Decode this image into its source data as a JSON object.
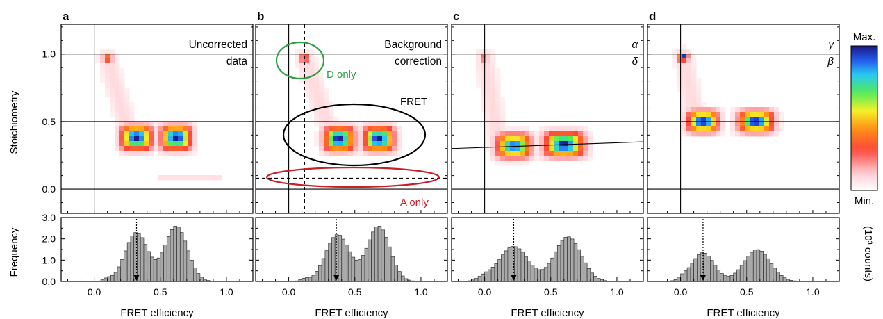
{
  "colors": {
    "d_only_circle": "#2e9e45",
    "a_only_ellipse": "#c8202a",
    "fret_ellipse": "#000000",
    "bar_fill": "#a9a9a9",
    "axis": "#000000"
  },
  "colorbar": {
    "max_label": "Max.",
    "min_label": "Min.",
    "side_label": "(10³ counts)"
  },
  "chart_data": [
    {
      "type": "heatmap",
      "panel": "a",
      "annotation": [
        "Uncorrected",
        "data"
      ],
      "xlim": [
        -0.25,
        1.2
      ],
      "ylim": [
        -0.18,
        1.22
      ],
      "ylabel": "Stoichiometry",
      "yticks": [
        "0.0",
        "0.5",
        "1.0"
      ],
      "ref_lines": {
        "x": [
          0.0
        ],
        "y": [
          0.0,
          0.5,
          1.0
        ]
      },
      "clusters": [
        {
          "E": 0.1,
          "S": 0.97,
          "sE": 0.025,
          "sS": 0.025,
          "peak": 0.45
        },
        {
          "E": 0.32,
          "S": 0.38,
          "sE": 0.07,
          "sS": 0.055,
          "peak": 1.0
        },
        {
          "E": 0.62,
          "S": 0.38,
          "sE": 0.07,
          "sS": 0.055,
          "peak": 1.0
        }
      ],
      "tail": {
        "from": [
          0.1,
          0.97
        ],
        "to": [
          0.25,
          0.45
        ]
      },
      "extra_segments": [
        {
          "E0": 0.5,
          "E1": 0.95,
          "S": 0.08,
          "level": 0.08
        }
      ]
    },
    {
      "type": "heatmap",
      "panel": "b",
      "annotation": [
        "Background",
        "correction"
      ],
      "xlim": [
        -0.25,
        1.2
      ],
      "ylim": [
        -0.18,
        1.22
      ],
      "yticks": [],
      "ref_lines": {
        "x": [
          0.0
        ],
        "y": [
          0.0,
          0.5,
          1.0
        ]
      },
      "dashed_lines": {
        "x": 0.12,
        "y": 0.08
      },
      "labels": {
        "d_only": "D only",
        "fret": "FRET",
        "a_only": "A only"
      },
      "clusters": [
        {
          "E": 0.12,
          "S": 0.97,
          "sE": 0.02,
          "sS": 0.025,
          "peak": 0.4
        },
        {
          "E": 0.38,
          "S": 0.37,
          "sE": 0.07,
          "sS": 0.055,
          "peak": 1.0
        },
        {
          "E": 0.68,
          "S": 0.37,
          "sE": 0.07,
          "sS": 0.055,
          "peak": 1.0
        }
      ],
      "tail": {
        "from": [
          0.12,
          0.97
        ],
        "to": [
          0.3,
          0.45
        ]
      },
      "extra_segments": []
    },
    {
      "type": "heatmap",
      "panel": "c",
      "annotation": [
        "α",
        "δ"
      ],
      "xlim": [
        -0.25,
        1.2
      ],
      "ylim": [
        -0.18,
        1.22
      ],
      "yticks": [],
      "ref_lines": {
        "x": [
          0.0
        ],
        "y": [
          0.0,
          0.5,
          1.0
        ]
      },
      "fit_line": {
        "E0": -0.25,
        "S0": 0.3,
        "E1": 1.2,
        "S1": 0.35
      },
      "clusters": [
        {
          "E": 0.0,
          "S": 0.97,
          "sE": 0.02,
          "sS": 0.025,
          "peak": 0.3
        },
        {
          "E": 0.22,
          "S": 0.32,
          "sE": 0.08,
          "sS": 0.055,
          "peak": 0.9
        },
        {
          "E": 0.6,
          "S": 0.33,
          "sE": 0.09,
          "sS": 0.055,
          "peak": 1.0
        }
      ],
      "tail": {
        "from": [
          0.0,
          0.97
        ],
        "to": [
          0.1,
          0.4
        ]
      },
      "extra_segments": []
    },
    {
      "type": "heatmap",
      "panel": "d",
      "annotation": [
        "γ",
        "β"
      ],
      "xlim": [
        -0.25,
        1.2
      ],
      "ylim": [
        -0.18,
        1.22
      ],
      "yticks": [],
      "ref_lines": {
        "x": [
          0.0
        ],
        "y": [
          0.0,
          0.5,
          1.0
        ]
      },
      "clusters": [
        {
          "E": 0.02,
          "S": 0.98,
          "sE": 0.025,
          "sS": 0.02,
          "peak": 1.0
        },
        {
          "E": 0.17,
          "S": 0.5,
          "sE": 0.07,
          "sS": 0.05,
          "peak": 1.0
        },
        {
          "E": 0.57,
          "S": 0.5,
          "sE": 0.08,
          "sS": 0.05,
          "peak": 1.0
        }
      ],
      "tail": {
        "from": [
          0.02,
          0.98
        ],
        "to": [
          0.12,
          0.5
        ]
      },
      "extra_segments": []
    },
    {
      "type": "bar",
      "panel": "a",
      "xlabel": "FRET efficiency",
      "ylabel": "Frequency",
      "xticks": [
        "0.0",
        "0.5",
        "1.0"
      ],
      "yticks": [
        "0.0",
        "1.0",
        "2.0",
        "3.0"
      ],
      "xlim": [
        -0.25,
        1.2
      ],
      "ylim": [
        0,
        3.0
      ],
      "arrow_at": 0.32,
      "components": [
        {
          "mu": 0.32,
          "sd": 0.085,
          "h": 2.3
        },
        {
          "mu": 0.62,
          "sd": 0.085,
          "h": 2.6
        },
        {
          "mu": 0.1,
          "sd": 0.03,
          "h": 0.12
        }
      ]
    },
    {
      "type": "bar",
      "panel": "b",
      "xlabel": "FRET efficiency",
      "xticks": [
        "0.0",
        "0.5",
        "1.0"
      ],
      "xlim": [
        -0.25,
        1.2
      ],
      "ylim": [
        0,
        3.0
      ],
      "arrow_at": 0.36,
      "components": [
        {
          "mu": 0.37,
          "sd": 0.09,
          "h": 2.2
        },
        {
          "mu": 0.68,
          "sd": 0.085,
          "h": 2.6
        },
        {
          "mu": 0.12,
          "sd": 0.03,
          "h": 0.12
        }
      ]
    },
    {
      "type": "bar",
      "panel": "c",
      "xlabel": "FRET efficiency",
      "xticks": [
        "0.0",
        "0.5",
        "1.0"
      ],
      "xlim": [
        -0.25,
        1.2
      ],
      "ylim": [
        0,
        3.0
      ],
      "arrow_at": 0.22,
      "components": [
        {
          "mu": 0.22,
          "sd": 0.11,
          "h": 1.65
        },
        {
          "mu": 0.63,
          "sd": 0.1,
          "h": 2.1
        },
        {
          "mu": 0.0,
          "sd": 0.05,
          "h": 0.18
        }
      ]
    },
    {
      "type": "bar",
      "panel": "d",
      "xlabel": "FRET efficiency",
      "xticks": [
        "0.0",
        "0.5",
        "1.0"
      ],
      "xlim": [
        -0.25,
        1.2
      ],
      "ylim": [
        0,
        3.0
      ],
      "arrow_at": 0.17,
      "components": [
        {
          "mu": 0.17,
          "sd": 0.085,
          "h": 1.35
        },
        {
          "mu": 0.58,
          "sd": 0.1,
          "h": 1.5
        },
        {
          "mu": 0.02,
          "sd": 0.03,
          "h": 0.12
        }
      ]
    }
  ]
}
